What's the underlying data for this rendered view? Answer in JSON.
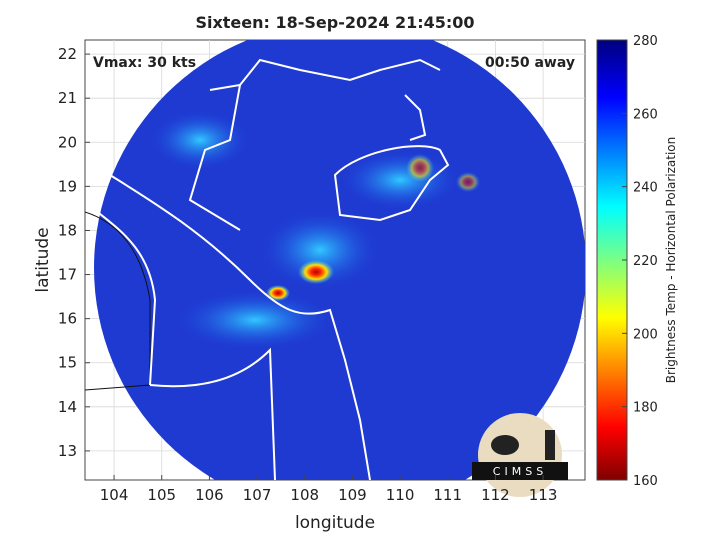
{
  "chart_data": {
    "type": "map",
    "title": "Sixteen: 18-Sep-2024 21:45:00",
    "annotations": {
      "left": "Vmax: 30 kts",
      "right": "00:50 away"
    },
    "xlabel": "longitude",
    "ylabel": "latitude",
    "xlim": [
      103.39,
      113.88
    ],
    "ylim": [
      12.34,
      22.32
    ],
    "xticks": [
      104,
      105,
      106,
      107,
      108,
      109,
      110,
      111,
      112,
      113
    ],
    "yticks": [
      13,
      14,
      15,
      16,
      17,
      18,
      19,
      20,
      21,
      22
    ],
    "grid": true,
    "colorbar": {
      "label": "Brightness Temp - Horizontal Polarization",
      "lim": [
        160,
        280
      ],
      "ticks": [
        160,
        180,
        200,
        220,
        240,
        260,
        280
      ]
    },
    "logo": "CIMSS"
  }
}
